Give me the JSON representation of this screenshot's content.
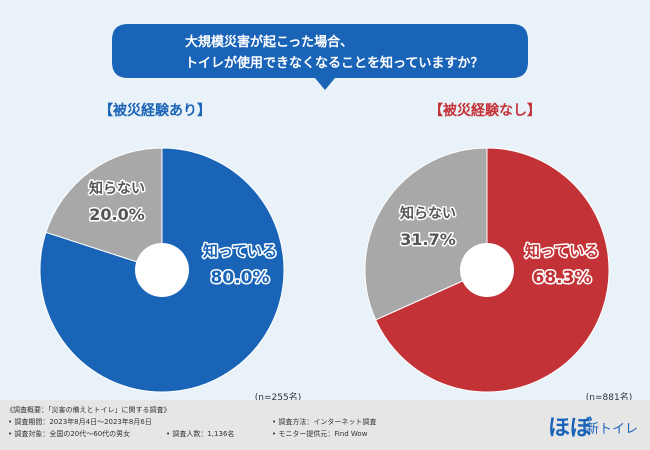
{
  "question": {
    "line1": "大規模災害が起こった場合、",
    "line2": "トイレが使用できなくなることを知っていますか？"
  },
  "chart_data": [
    {
      "type": "pie",
      "title": "【被災経験あり】",
      "categories": [
        "知っている",
        "知らない"
      ],
      "values": [
        80.0,
        20.0
      ],
      "value_labels": [
        "80.0%",
        "20.0%"
      ],
      "colors": [
        "#1a64b8",
        "#a8a8a8"
      ],
      "n_label": "(n=255名)"
    },
    {
      "type": "pie",
      "title": "【被災経験なし】",
      "categories": [
        "知っている",
        "知らない"
      ],
      "values": [
        68.3,
        31.7
      ],
      "value_labels": [
        "68.3%",
        "31.7%"
      ],
      "colors": [
        "#c33236",
        "#a8a8a8"
      ],
      "n_label": "(n=881名)"
    }
  ],
  "footer": {
    "overview": "《調査概要：「災害の備えとトイレ」に関する調査》",
    "period": "• 調査期間：2023年8月4日～2023年8月6日",
    "method": "• 調査方法：インターネット調査",
    "target": "• 調査対象：全国の20代～60代の男女",
    "count": "• 調査人数：1,136名",
    "monitor": "• モニター提供元：Find Wow"
  },
  "logo": {
    "main": "ほぼ",
    "sub": "新トイレ"
  }
}
